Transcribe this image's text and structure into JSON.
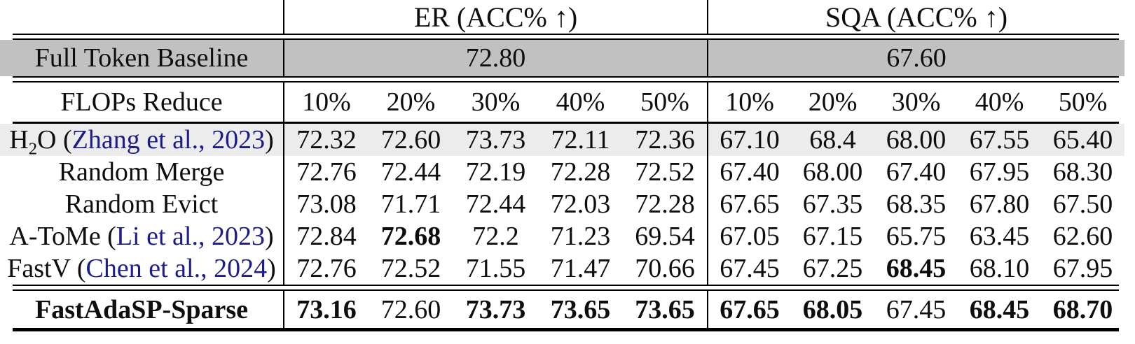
{
  "table": {
    "colors": {
      "baseline_row_bg": "#c1c1c1",
      "highlight_row_bg": "#ececec",
      "citation": "#1c1c8a",
      "text": "#0e0e0e",
      "rule": "#000000"
    },
    "header": {
      "er_label": "ER (ACC% ↑)",
      "sqa_label": "SQA (ACC% ↑)"
    },
    "baseline": {
      "label": "Full Token Baseline",
      "er_value": "72.80",
      "sqa_value": "67.60"
    },
    "flops_header": {
      "label": "FLOPs Reduce",
      "levels": [
        "10%",
        "20%",
        "30%",
        "40%",
        "50%"
      ]
    },
    "methods": [
      {
        "id": "h2o",
        "highlight": true,
        "label_parts": [
          {
            "t": "H"
          },
          {
            "t": "2",
            "sub": true
          },
          {
            "t": "O ("
          },
          {
            "t": "Zhang et al., 2023",
            "cite": true
          },
          {
            "t": ")"
          }
        ],
        "er": [
          "72.32",
          "72.60",
          "73.73",
          "72.11",
          "72.36"
        ],
        "sqa": [
          "67.10",
          "68.4",
          "68.00",
          "67.55",
          "65.40"
        ]
      },
      {
        "id": "random-merge",
        "highlight": false,
        "label_parts": [
          {
            "t": "Random Merge"
          }
        ],
        "er": [
          "72.76",
          "72.44",
          "72.19",
          "72.28",
          "72.52"
        ],
        "sqa": [
          "67.40",
          "68.00",
          "67.40",
          "67.95",
          "68.30"
        ]
      },
      {
        "id": "random-evict",
        "highlight": false,
        "label_parts": [
          {
            "t": "Random Evict"
          }
        ],
        "er": [
          "73.08",
          "71.71",
          "72.44",
          "72.03",
          "72.28"
        ],
        "sqa": [
          "67.65",
          "67.35",
          "68.35",
          "67.80",
          "67.50"
        ]
      },
      {
        "id": "a-tome",
        "highlight": false,
        "label_parts": [
          {
            "t": "A-ToMe ("
          },
          {
            "t": "Li et al., 2023",
            "cite": true
          },
          {
            "t": ")"
          }
        ],
        "er": [
          "72.84",
          {
            "v": "72.68",
            "b": true
          },
          "72.2",
          "71.23",
          "69.54"
        ],
        "sqa": [
          "67.05",
          "67.15",
          "65.75",
          "63.45",
          "62.60"
        ]
      },
      {
        "id": "fastv",
        "highlight": false,
        "label_parts": [
          {
            "t": "FastV ("
          },
          {
            "t": "Chen et al., 2024",
            "cite": true
          },
          {
            "t": ")"
          }
        ],
        "er": [
          "72.76",
          "72.52",
          "71.55",
          "71.47",
          "70.66"
        ],
        "sqa": [
          "67.45",
          "67.25",
          {
            "v": "68.45",
            "b": true
          },
          "68.10",
          "67.95"
        ]
      }
    ],
    "final_row": {
      "id": "fastadasp-sparse",
      "label": "FastAdaSP-Sparse",
      "er": [
        {
          "v": "73.16",
          "b": true
        },
        "72.60",
        {
          "v": "73.73",
          "b": true
        },
        {
          "v": "73.65",
          "b": true
        },
        {
          "v": "73.65",
          "b": true
        }
      ],
      "sqa": [
        {
          "v": "67.65",
          "b": true
        },
        {
          "v": "68.05",
          "b": true
        },
        "67.45",
        {
          "v": "68.45",
          "b": true
        },
        {
          "v": "68.70",
          "b": true
        }
      ]
    }
  }
}
